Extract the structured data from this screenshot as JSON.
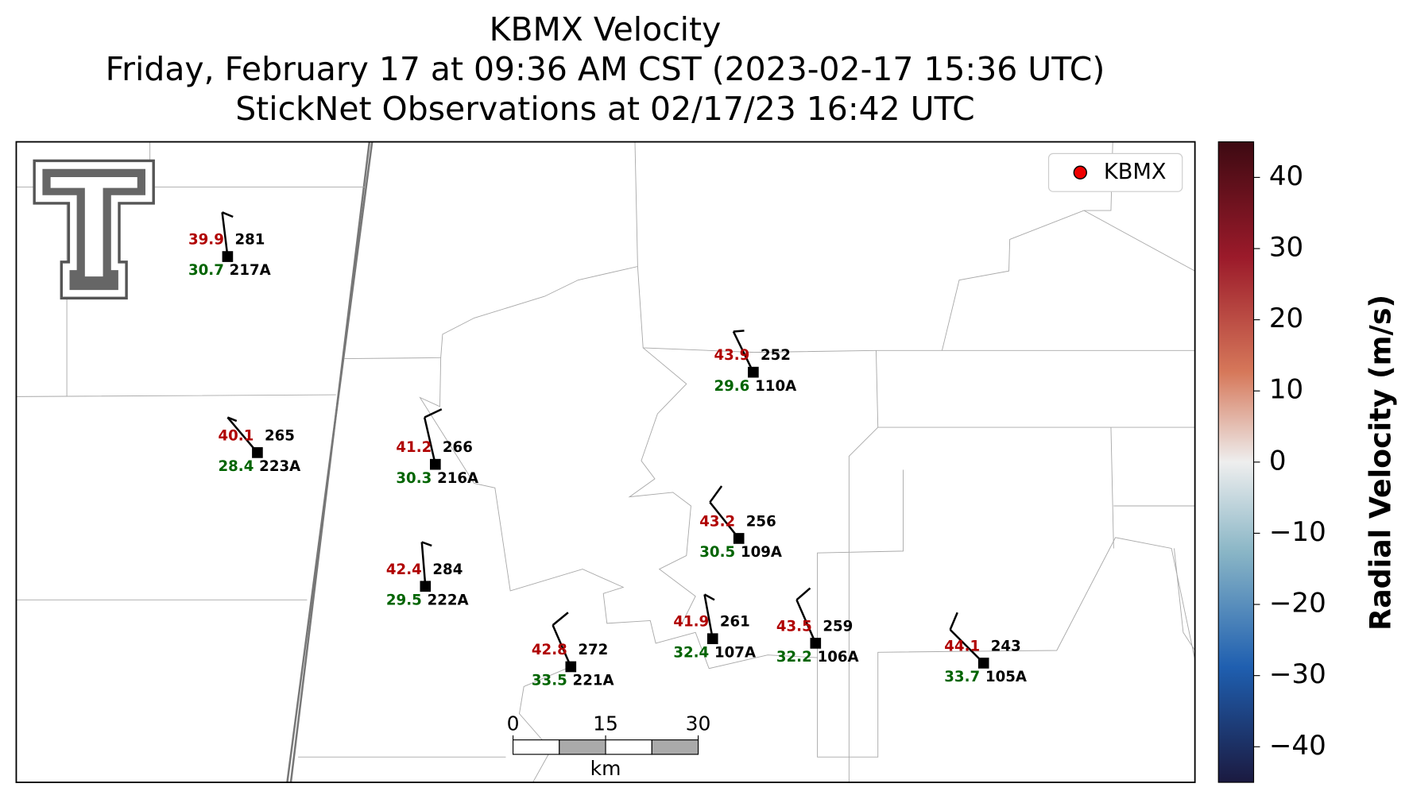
{
  "title": {
    "lines": [
      "KBMX Velocity",
      "Friday, February 17 at 09:36 AM CST (2023-02-17 15:36 UTC)",
      "StickNet Observations at 02/17/23 16:42 UTC"
    ]
  },
  "legend": {
    "label": "KBMX"
  },
  "colorbar": {
    "label": "Radial Velocity (m/s)",
    "ylim": [
      -45,
      45
    ],
    "yticks": [
      {
        "value": -40,
        "label": "−40"
      },
      {
        "value": -30,
        "label": "−30"
      },
      {
        "value": -20,
        "label": "−20"
      },
      {
        "value": -10,
        "label": "−10"
      },
      0,
      10,
      20,
      30,
      40
    ]
  },
  "scale_bar": {
    "ticks": [
      0,
      15,
      30
    ],
    "unit": "km"
  },
  "stations": [
    {
      "id": "217A",
      "temperature": 39.9,
      "dewpoint": 30.7,
      "pressure": 281
    },
    {
      "id": "223A",
      "temperature": 40.1,
      "dewpoint": 28.4,
      "pressure": 265
    },
    {
      "id": "216A",
      "temperature": 41.2,
      "dewpoint": 30.3,
      "pressure": 266
    },
    {
      "id": "222A",
      "temperature": 42.4,
      "dewpoint": 29.5,
      "pressure": 284
    },
    {
      "id": "221A",
      "temperature": 42.8,
      "dewpoint": 33.5,
      "pressure": 272
    },
    {
      "id": "110A",
      "temperature": 43.9,
      "dewpoint": 29.6,
      "pressure": 252
    },
    {
      "id": "109A",
      "temperature": 43.2,
      "dewpoint": 30.5,
      "pressure": 256
    },
    {
      "id": "107A",
      "temperature": 41.9,
      "dewpoint": 32.4,
      "pressure": 261
    },
    {
      "id": "106A",
      "temperature": 43.5,
      "dewpoint": 32.2,
      "pressure": 259
    },
    {
      "id": "105A",
      "temperature": 44.1,
      "dewpoint": 33.7,
      "pressure": 243
    }
  ]
}
